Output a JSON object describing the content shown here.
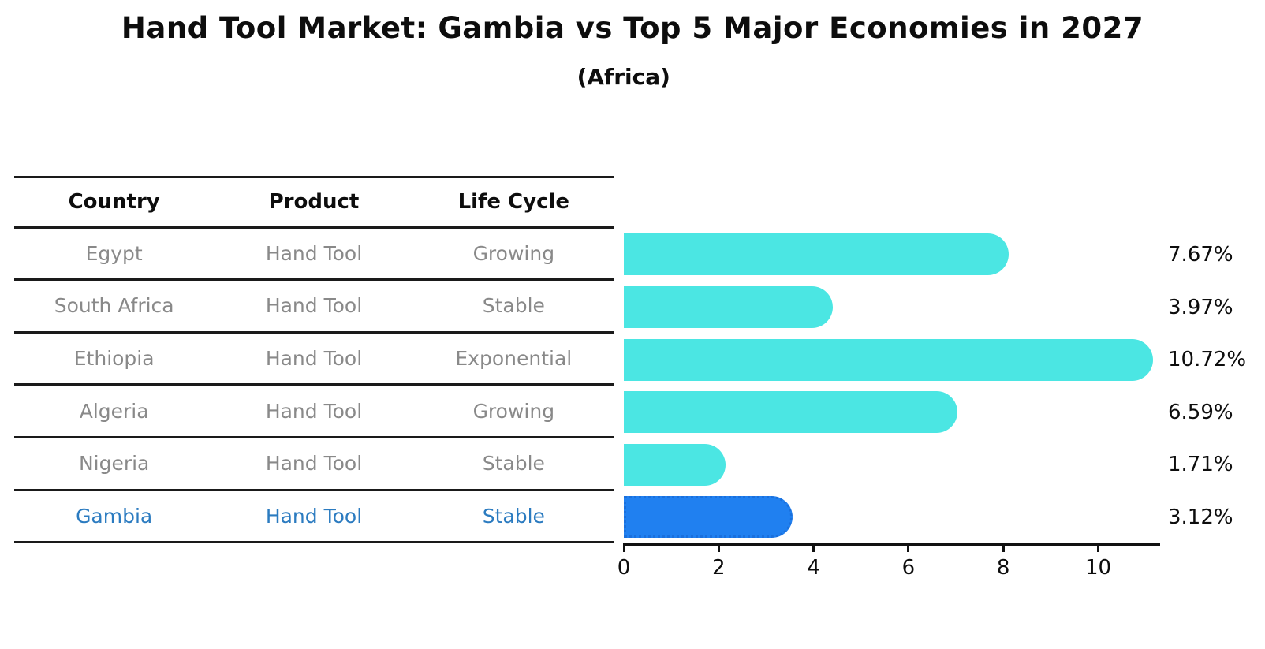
{
  "title": "Hand Tool Market: Gambia vs Top 5 Major Economies in 2027",
  "subtitle": "(Africa)",
  "table": {
    "headers": [
      "Country",
      "Product",
      "Life Cycle"
    ],
    "rows": [
      {
        "country": "Egypt",
        "product": "Hand Tool",
        "life_cycle": "Growing",
        "highlight": false
      },
      {
        "country": "South Africa",
        "product": "Hand Tool",
        "life_cycle": "Stable",
        "highlight": false
      },
      {
        "country": "Ethiopia",
        "product": "Hand Tool",
        "life_cycle": "Exponential",
        "highlight": false
      },
      {
        "country": "Algeria",
        "product": "Hand Tool",
        "life_cycle": "Growing",
        "highlight": false
      },
      {
        "country": "Nigeria",
        "product": "Hand Tool",
        "life_cycle": "Stable",
        "highlight": false
      },
      {
        "country": "Gambia",
        "product": "Hand Tool",
        "life_cycle": "Stable",
        "highlight": true
      }
    ]
  },
  "chart_data": {
    "type": "bar",
    "orientation": "horizontal",
    "title": "Hand Tool Market: Gambia vs Top 5 Major Economies in 2027",
    "subtitle": "(Africa)",
    "categories": [
      "Egypt",
      "South Africa",
      "Ethiopia",
      "Algeria",
      "Nigeria",
      "Gambia"
    ],
    "values": [
      7.67,
      3.97,
      10.72,
      6.59,
      1.71,
      3.12
    ],
    "value_labels": [
      "7.67%",
      "3.97%",
      "10.72%",
      "6.59%",
      "1.71%",
      "3.12%"
    ],
    "x_ticks": [
      0,
      2,
      4,
      6,
      8,
      10
    ],
    "xlim": [
      0,
      11.3
    ],
    "xlabel": "",
    "ylabel": "",
    "grid": false,
    "legend": false,
    "highlight_index": 5,
    "colors": {
      "bar": "#4BE6E3",
      "highlight_bar": "#2080F0",
      "highlight_border": "#1a70dd",
      "highlight_text": "#2b7bc0",
      "row_text": "#898989",
      "axis": "#111111"
    }
  }
}
